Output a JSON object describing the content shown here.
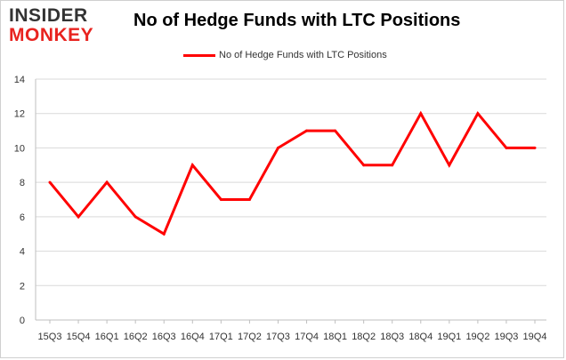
{
  "logo": {
    "line1": "INSIDER",
    "line2": "MONKEY"
  },
  "colors": {
    "series": "#ff0000",
    "logo_dark": "#333333",
    "logo_accent": "#e8231f",
    "grid": "#d9d9d9",
    "axis": "#bfbfbf"
  },
  "chart_data": {
    "type": "line",
    "title": "No of Hedge Funds with LTC Positions",
    "xlabel": "",
    "ylabel": "",
    "ylim": [
      0,
      14
    ],
    "yticks": [
      0,
      2,
      4,
      6,
      8,
      10,
      12,
      14
    ],
    "grid": true,
    "legend_position": "top-center",
    "categories": [
      "15Q3",
      "15Q4",
      "16Q1",
      "16Q2",
      "16Q3",
      "16Q4",
      "17Q1",
      "17Q2",
      "17Q3",
      "17Q4",
      "18Q1",
      "18Q2",
      "18Q3",
      "18Q4",
      "19Q1",
      "19Q2",
      "19Q3",
      "19Q4"
    ],
    "series": [
      {
        "name": "No of Hedge Funds with LTC Positions",
        "values": [
          8,
          6,
          8,
          6,
          5,
          9,
          7,
          7,
          10,
          11,
          11,
          9,
          9,
          12,
          9,
          12,
          10,
          10
        ]
      }
    ]
  }
}
